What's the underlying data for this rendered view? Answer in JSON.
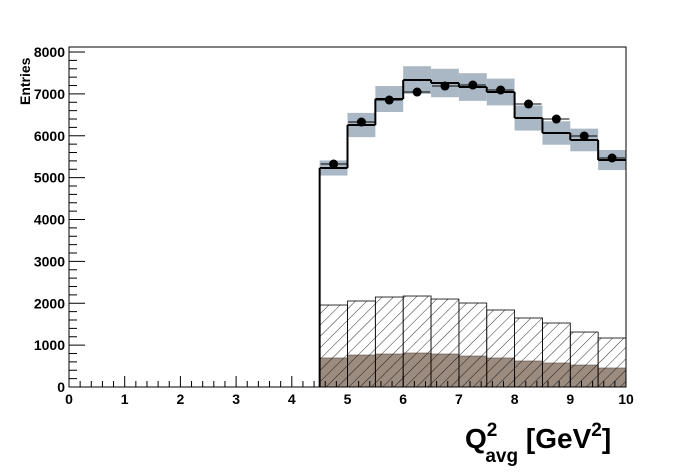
{
  "chart_data": {
    "type": "histogram",
    "xlabel_parts": [
      "Q",
      "2",
      "avg",
      " [GeV",
      "2",
      "]"
    ],
    "ylabel": "Entries",
    "bins": [
      4.5,
      5,
      5.5,
      6,
      6.5,
      7,
      7.5,
      8,
      8.5,
      9,
      9.5,
      10
    ],
    "series": [
      {
        "style": "fill",
        "color": "#9c8b7f",
        "values": [
          693,
          764,
          788,
          812,
          788,
          740,
          693,
          621,
          573,
          525,
          454
        ]
      },
      {
        "style": "hatch",
        "color": "#000000",
        "values": [
          1958,
          2054,
          2149,
          2173,
          2101,
          2006,
          1839,
          1648,
          1528,
          1313,
          1170
        ]
      },
      {
        "style": "step",
        "color": "#000000",
        "band_color": "#aab7c4",
        "values": [
          5230,
          6257,
          6878,
          7331,
          7260,
          7164,
          7045,
          6424,
          6066,
          5900,
          5421
        ],
        "errors": [
          180,
          290,
          310,
          330,
          340,
          330,
          320,
          300,
          280,
          270,
          240
        ]
      },
      {
        "style": "points",
        "color": "#000000",
        "values": [
          5325,
          6328,
          6854,
          7045,
          7188,
          7212,
          7093,
          6758,
          6400,
          5994,
          5469
        ]
      }
    ],
    "xlim": [
      0,
      10
    ],
    "xticks": [
      0,
      1,
      2,
      3,
      4,
      5,
      6,
      7,
      8,
      9,
      10
    ],
    "ylim": [
      0,
      8120
    ],
    "yticks": [
      0,
      1000,
      2000,
      3000,
      4000,
      5000,
      6000,
      7000,
      8000
    ]
  }
}
